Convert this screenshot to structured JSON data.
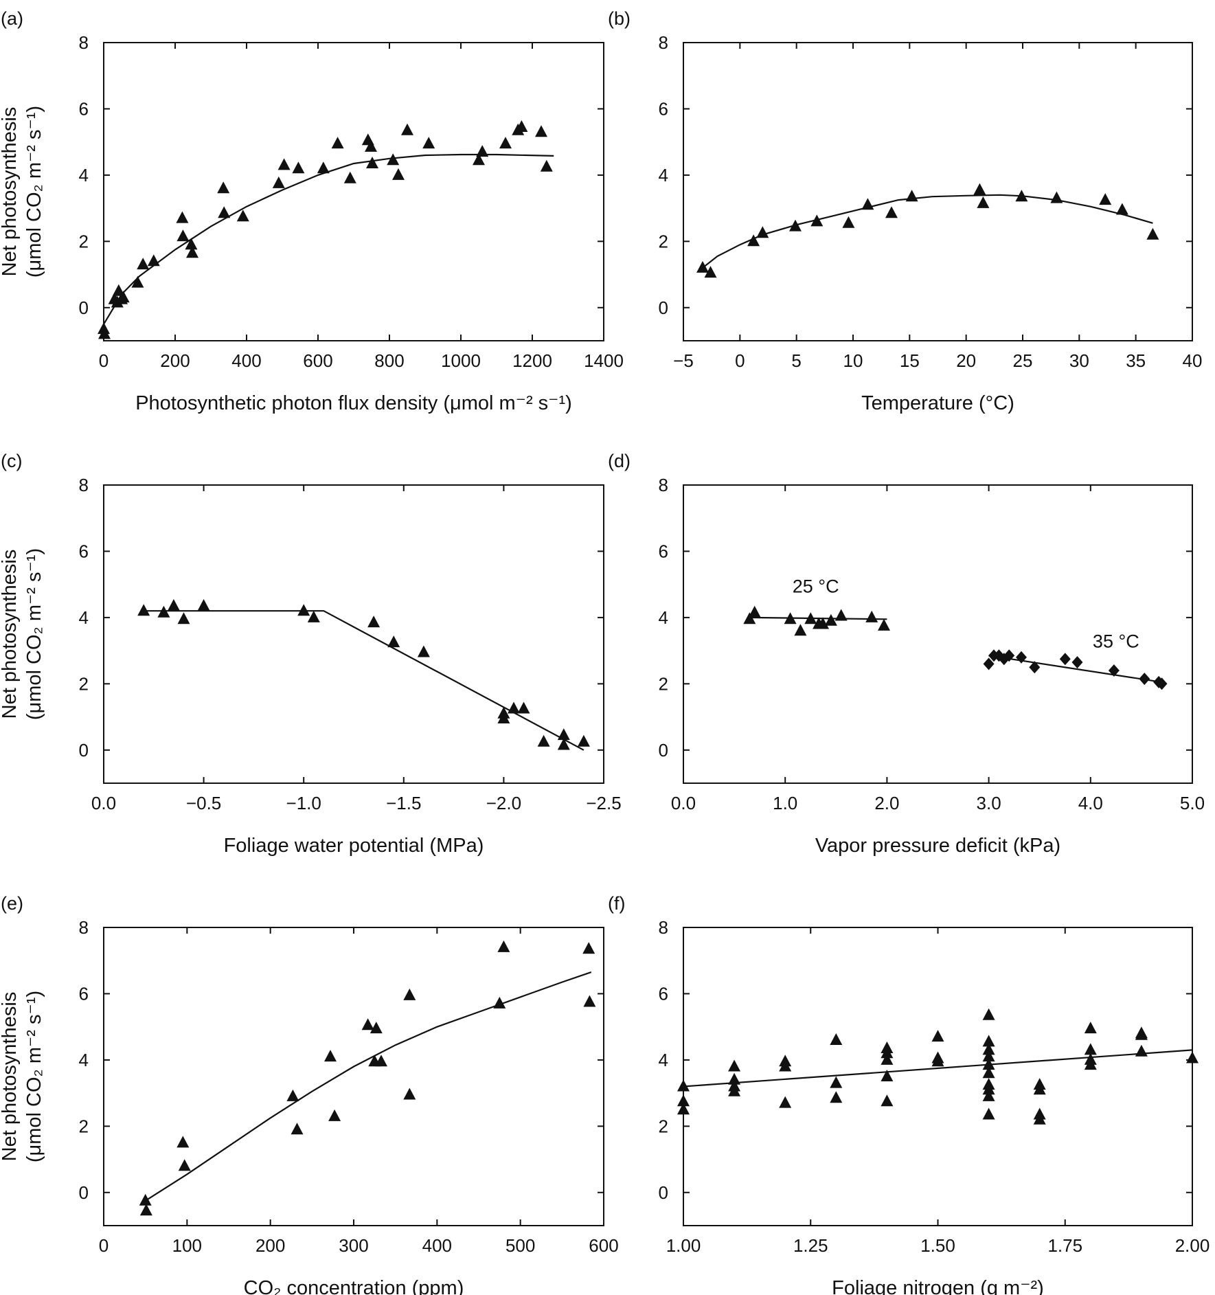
{
  "chart_data": [
    {
      "panel": "(a)",
      "type": "scatter",
      "xlabel": "Photosynthetic photon flux density (μmol m⁻² s⁻¹)",
      "ylabel": [
        "Net photosynthesis",
        "(μmol CO₂ m⁻² s⁻¹)"
      ],
      "xlim": [
        0,
        1400
      ],
      "ylim": [
        -1,
        8
      ],
      "xticks": [
        0,
        200,
        400,
        600,
        800,
        1000,
        1200,
        1400
      ],
      "xtick_labels": [
        "0",
        "200",
        "400",
        "600",
        "800",
        "1000",
        "1200",
        "1400"
      ],
      "yticks": [
        0,
        2,
        4,
        6,
        8
      ],
      "ytick_labels": [
        "0",
        "2",
        "4",
        "6",
        "8"
      ],
      "marker": "triangle",
      "points": [
        [
          0,
          -0.65
        ],
        [
          2,
          -0.8
        ],
        [
          30,
          0.25
        ],
        [
          38,
          0.15
        ],
        [
          42,
          0.5
        ],
        [
          50,
          0.25
        ],
        [
          55,
          0.3
        ],
        [
          95,
          0.75
        ],
        [
          110,
          1.3
        ],
        [
          140,
          1.4
        ],
        [
          220,
          2.7
        ],
        [
          222,
          2.15
        ],
        [
          245,
          1.9
        ],
        [
          248,
          1.65
        ],
        [
          335,
          3.6
        ],
        [
          337,
          2.85
        ],
        [
          390,
          2.75
        ],
        [
          490,
          3.75
        ],
        [
          505,
          4.3
        ],
        [
          545,
          4.2
        ],
        [
          615,
          4.2
        ],
        [
          655,
          4.95
        ],
        [
          690,
          3.9
        ],
        [
          740,
          5.05
        ],
        [
          748,
          4.85
        ],
        [
          752,
          4.35
        ],
        [
          810,
          4.45
        ],
        [
          825,
          4.0
        ],
        [
          850,
          5.35
        ],
        [
          910,
          4.95
        ],
        [
          1050,
          4.45
        ],
        [
          1060,
          4.7
        ],
        [
          1125,
          4.95
        ],
        [
          1160,
          5.35
        ],
        [
          1170,
          5.45
        ],
        [
          1225,
          5.3
        ],
        [
          1240,
          4.25
        ]
      ],
      "fit": [
        [
          0,
          -0.5
        ],
        [
          50,
          0.4
        ],
        [
          100,
          0.95
        ],
        [
          200,
          1.75
        ],
        [
          300,
          2.45
        ],
        [
          400,
          3.05
        ],
        [
          500,
          3.55
        ],
        [
          600,
          4.0
        ],
        [
          700,
          4.35
        ],
        [
          800,
          4.5
        ],
        [
          900,
          4.6
        ],
        [
          1000,
          4.62
        ],
        [
          1100,
          4.62
        ],
        [
          1260,
          4.58
        ]
      ],
      "annotations": []
    },
    {
      "panel": "(b)",
      "type": "scatter",
      "xlabel": "Temperature (°C)",
      "ylabel": [],
      "xlim": [
        -5,
        40
      ],
      "ylim": [
        -1,
        8
      ],
      "xticks": [
        -5,
        0,
        5,
        10,
        15,
        20,
        25,
        30,
        35,
        40
      ],
      "xtick_labels": [
        "−5",
        "0",
        "5",
        "10",
        "15",
        "20",
        "25",
        "30",
        "35",
        "40"
      ],
      "yticks": [
        0,
        2,
        4,
        6,
        8
      ],
      "ytick_labels": [
        "0",
        "2",
        "4",
        "6",
        "8"
      ],
      "marker": "triangle",
      "points": [
        [
          -3.3,
          1.2
        ],
        [
          -2.6,
          1.05
        ],
        [
          1.2,
          2.0
        ],
        [
          2.0,
          2.25
        ],
        [
          4.9,
          2.45
        ],
        [
          6.8,
          2.6
        ],
        [
          9.6,
          2.55
        ],
        [
          11.3,
          3.1
        ],
        [
          13.4,
          2.85
        ],
        [
          15.2,
          3.35
        ],
        [
          21.2,
          3.55
        ],
        [
          21.5,
          3.15
        ],
        [
          24.9,
          3.35
        ],
        [
          28,
          3.3
        ],
        [
          32.3,
          3.25
        ],
        [
          33.8,
          2.95
        ],
        [
          36.5,
          2.2
        ]
      ],
      "fit": [
        [
          -3.3,
          1.2
        ],
        [
          -2,
          1.55
        ],
        [
          0,
          1.9
        ],
        [
          2,
          2.2
        ],
        [
          5,
          2.5
        ],
        [
          8,
          2.75
        ],
        [
          11,
          3.0
        ],
        [
          14,
          3.25
        ],
        [
          17,
          3.35
        ],
        [
          20,
          3.38
        ],
        [
          23,
          3.4
        ],
        [
          25,
          3.37
        ],
        [
          28,
          3.25
        ],
        [
          31,
          3.05
        ],
        [
          34,
          2.8
        ],
        [
          36.5,
          2.55
        ]
      ],
      "annotations": []
    },
    {
      "panel": "(c)",
      "type": "scatter",
      "xlabel": "Foliage water potential (MPa)",
      "ylabel": [
        "Net photosynthesis",
        "(μmol CO₂ m⁻² s⁻¹)"
      ],
      "xlim": [
        0,
        -2.5
      ],
      "ylim": [
        -1,
        8
      ],
      "xticks": [
        0,
        -0.5,
        -1.0,
        -1.5,
        -2.0,
        -2.5
      ],
      "xtick_labels": [
        "0.0",
        "−0.5",
        "−1.0",
        "−1.5",
        "−2.0",
        "−2.5"
      ],
      "yticks": [
        0,
        2,
        4,
        6,
        8
      ],
      "ytick_labels": [
        "0",
        "2",
        "4",
        "6",
        "8"
      ],
      "marker": "triangle",
      "points": [
        [
          -0.2,
          4.2
        ],
        [
          -0.3,
          4.15
        ],
        [
          -0.35,
          4.35
        ],
        [
          -0.4,
          3.95
        ],
        [
          -0.5,
          4.35
        ],
        [
          -1.0,
          4.2
        ],
        [
          -1.05,
          4.0
        ],
        [
          -1.35,
          3.85
        ],
        [
          -1.45,
          3.25
        ],
        [
          -1.6,
          2.95
        ],
        [
          -2.0,
          1.1
        ],
        [
          -2.0,
          0.95
        ],
        [
          -2.05,
          1.25
        ],
        [
          -2.1,
          1.25
        ],
        [
          -2.2,
          0.25
        ],
        [
          -2.3,
          0.45
        ],
        [
          -2.3,
          0.15
        ],
        [
          -2.4,
          0.25
        ]
      ],
      "fit": [
        [
          -0.2,
          4.2
        ],
        [
          -1.1,
          4.2
        ],
        [
          -2.4,
          0.0
        ]
      ],
      "annotations": []
    },
    {
      "panel": "(d)",
      "type": "scatter",
      "xlabel": "Vapor pressure deficit (kPa)",
      "ylabel": [],
      "xlim": [
        0,
        5
      ],
      "ylim": [
        -1,
        8
      ],
      "xticks": [
        0,
        1,
        2,
        3,
        4,
        5
      ],
      "xtick_labels": [
        "0.0",
        "1.0",
        "2.0",
        "3.0",
        "4.0",
        "5.0"
      ],
      "yticks": [
        0,
        2,
        4,
        6,
        8
      ],
      "ytick_labels": [
        "0",
        "2",
        "4",
        "6",
        "8"
      ],
      "series": [
        {
          "marker": "triangle",
          "points": [
            [
              0.65,
              3.95
            ],
            [
              0.7,
              4.15
            ],
            [
              1.05,
              3.95
            ],
            [
              1.15,
              3.6
            ],
            [
              1.25,
              3.95
            ],
            [
              1.33,
              3.8
            ],
            [
              1.37,
              3.8
            ],
            [
              1.45,
              3.9
            ],
            [
              1.55,
              4.05
            ],
            [
              1.85,
              4.0
            ],
            [
              1.97,
              3.75
            ]
          ],
          "fit": [
            [
              0.65,
              4.0
            ],
            [
              2.0,
              3.95
            ]
          ]
        },
        {
          "marker": "diamond",
          "points": [
            [
              3.0,
              2.6
            ],
            [
              3.05,
              2.85
            ],
            [
              3.1,
              2.85
            ],
            [
              3.15,
              2.75
            ],
            [
              3.2,
              2.85
            ],
            [
              3.32,
              2.8
            ],
            [
              3.45,
              2.5
            ],
            [
              3.75,
              2.75
            ],
            [
              3.87,
              2.65
            ],
            [
              4.23,
              2.4
            ],
            [
              4.53,
              2.15
            ],
            [
              4.67,
              2.05
            ],
            [
              4.7,
              2.0
            ]
          ],
          "fit": [
            [
              3.0,
              2.85
            ],
            [
              4.7,
              2.05
            ]
          ]
        }
      ],
      "annotations": [
        {
          "text": "25 °C",
          "at": [
            1.3,
            4.75
          ]
        },
        {
          "text": "35 °C",
          "at": [
            4.25,
            3.1
          ]
        }
      ]
    },
    {
      "panel": "(e)",
      "type": "scatter",
      "xlabel": "CO₂ concentration (ppm)",
      "ylabel": [
        "Net photosynthesis",
        "(μmol CO₂ m⁻² s⁻¹)"
      ],
      "xlim": [
        0,
        600
      ],
      "ylim": [
        -1,
        8
      ],
      "xticks": [
        0,
        100,
        200,
        300,
        400,
        500,
        600
      ],
      "xtick_labels": [
        "0",
        "100",
        "200",
        "300",
        "400",
        "500",
        "600"
      ],
      "yticks": [
        0,
        2,
        4,
        6,
        8
      ],
      "ytick_labels": [
        "0",
        "2",
        "4",
        "6",
        "8"
      ],
      "marker": "triangle",
      "points": [
        [
          50,
          -0.25
        ],
        [
          51,
          -0.55
        ],
        [
          95,
          1.5
        ],
        [
          97,
          0.8
        ],
        [
          227,
          2.9
        ],
        [
          232,
          1.9
        ],
        [
          272,
          4.1
        ],
        [
          277,
          2.3
        ],
        [
          317,
          5.05
        ],
        [
          325,
          3.95
        ],
        [
          327,
          4.95
        ],
        [
          333,
          3.95
        ],
        [
          367,
          5.95
        ],
        [
          367,
          2.95
        ],
        [
          475,
          5.7
        ],
        [
          480,
          7.4
        ],
        [
          582,
          7.35
        ],
        [
          583,
          5.75
        ]
      ],
      "fit": [
        [
          50,
          -0.25
        ],
        [
          100,
          0.55
        ],
        [
          150,
          1.4
        ],
        [
          200,
          2.25
        ],
        [
          250,
          3.05
        ],
        [
          300,
          3.8
        ],
        [
          350,
          4.45
        ],
        [
          400,
          5.0
        ],
        [
          450,
          5.45
        ],
        [
          500,
          5.9
        ],
        [
          550,
          6.35
        ],
        [
          585,
          6.65
        ]
      ],
      "annotations": []
    },
    {
      "panel": "(f)",
      "type": "scatter",
      "xlabel": "Foliage nitrogen (g m⁻²)",
      "ylabel": [],
      "xlim": [
        1.0,
        2.0
      ],
      "ylim": [
        -1,
        8
      ],
      "xticks": [
        1.0,
        1.25,
        1.5,
        1.75,
        2.0
      ],
      "xtick_labels": [
        "1.00",
        "1.25",
        "1.50",
        "1.75",
        "2.00"
      ],
      "yticks": [
        0,
        2,
        4,
        6,
        8
      ],
      "ytick_labels": [
        "0",
        "2",
        "4",
        "6",
        "8"
      ],
      "marker": "triangle",
      "points": [
        [
          1.0,
          3.2
        ],
        [
          1.0,
          2.75
        ],
        [
          1.0,
          2.5
        ],
        [
          1.1,
          3.8
        ],
        [
          1.1,
          3.4
        ],
        [
          1.1,
          3.2
        ],
        [
          1.1,
          3.05
        ],
        [
          1.2,
          3.95
        ],
        [
          1.2,
          3.8
        ],
        [
          1.2,
          2.7
        ],
        [
          1.3,
          4.6
        ],
        [
          1.3,
          3.3
        ],
        [
          1.3,
          2.85
        ],
        [
          1.4,
          4.35
        ],
        [
          1.4,
          4.2
        ],
        [
          1.4,
          4.0
        ],
        [
          1.4,
          3.5
        ],
        [
          1.4,
          2.75
        ],
        [
          1.5,
          4.7
        ],
        [
          1.5,
          4.05
        ],
        [
          1.5,
          3.95
        ],
        [
          1.6,
          5.35
        ],
        [
          1.6,
          4.55
        ],
        [
          1.6,
          4.3
        ],
        [
          1.6,
          4.1
        ],
        [
          1.6,
          3.85
        ],
        [
          1.6,
          3.6
        ],
        [
          1.6,
          3.25
        ],
        [
          1.6,
          3.1
        ],
        [
          1.6,
          2.9
        ],
        [
          1.6,
          2.35
        ],
        [
          1.7,
          3.25
        ],
        [
          1.7,
          3.1
        ],
        [
          1.7,
          2.35
        ],
        [
          1.7,
          2.2
        ],
        [
          1.8,
          4.95
        ],
        [
          1.8,
          4.3
        ],
        [
          1.8,
          4.0
        ],
        [
          1.8,
          3.85
        ],
        [
          1.9,
          4.8
        ],
        [
          1.9,
          4.75
        ],
        [
          1.9,
          4.25
        ],
        [
          2.0,
          4.05
        ]
      ],
      "fit": [
        [
          1.0,
          3.2
        ],
        [
          2.0,
          4.3
        ]
      ],
      "annotations": []
    }
  ]
}
